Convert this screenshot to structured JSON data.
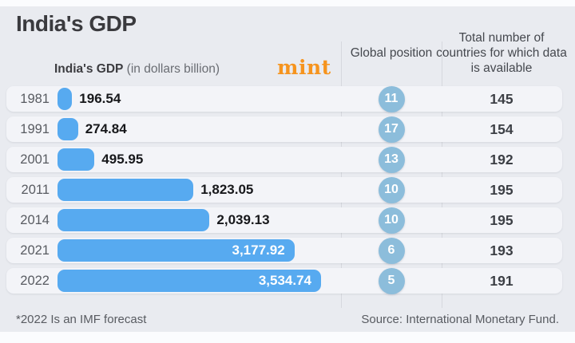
{
  "title": "India's GDP",
  "brand": {
    "logo_text": "mint",
    "logo_color": "#f6941e"
  },
  "columns": {
    "gdp_header_bold": "India's GDP",
    "gdp_header_note": " (in dollars billion)",
    "position_header": "Global position",
    "countries_header": "Total number of countries for which data is available"
  },
  "footer": {
    "note": "*2022 Is an IMF forecast",
    "source": "Source: International Monetary Fund."
  },
  "chart_data": {
    "type": "bar",
    "orientation": "horizontal",
    "title": "India's GDP",
    "xlabel": "GDP (in dollars billion)",
    "categories": [
      "1981",
      "1991",
      "2001",
      "2011",
      "2014",
      "2021",
      "2022"
    ],
    "series": [
      {
        "name": "India's GDP (in dollars billion)",
        "values": [
          196.54,
          274.84,
          495.95,
          1823.05,
          2039.13,
          3177.92,
          3534.74
        ]
      },
      {
        "name": "Global position",
        "values": [
          11,
          17,
          13,
          10,
          10,
          6,
          5
        ]
      },
      {
        "name": "Total number of countries for which data is available",
        "values": [
          145,
          154,
          192,
          195,
          195,
          193,
          191
        ]
      }
    ],
    "value_labels": [
      "196.54",
      "274.84",
      "495.95",
      "1,823.05",
      "2,039.13",
      "3,177.92",
      "3,534.74"
    ],
    "label_inside_bar": [
      false,
      false,
      false,
      false,
      false,
      true,
      true
    ],
    "xlim": [
      0,
      3534.74
    ],
    "bar_color": "#57aaf0",
    "position_circle_color": "#8cbddb",
    "background_color": "#e9ebf0",
    "stripe_color": "#f3f4f8",
    "grid": false,
    "legend_position": "none",
    "note": "*2022 Is an IMF forecast",
    "source": "Source: International Monetary Fund."
  }
}
